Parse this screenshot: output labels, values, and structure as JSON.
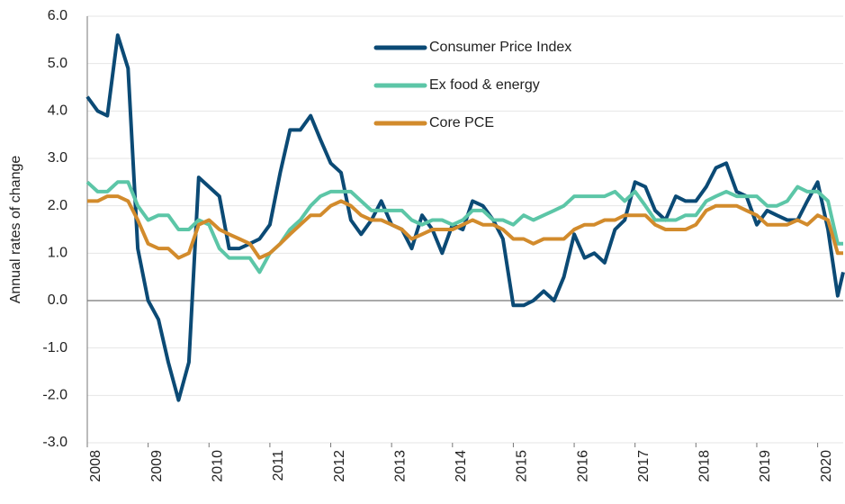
{
  "chart_data": {
    "type": "line",
    "y_label": "Annual rates of change",
    "x": [
      2008.0,
      2008.17,
      2008.33,
      2008.5,
      2008.67,
      2008.83,
      2009.0,
      2009.17,
      2009.33,
      2009.5,
      2009.67,
      2009.83,
      2010.0,
      2010.17,
      2010.33,
      2010.5,
      2010.67,
      2010.83,
      2011.0,
      2011.17,
      2011.33,
      2011.5,
      2011.67,
      2011.83,
      2012.0,
      2012.17,
      2012.33,
      2012.5,
      2012.67,
      2012.83,
      2013.0,
      2013.17,
      2013.33,
      2013.5,
      2013.67,
      2013.83,
      2014.0,
      2014.17,
      2014.33,
      2014.5,
      2014.67,
      2014.83,
      2015.0,
      2015.17,
      2015.33,
      2015.5,
      2015.67,
      2015.83,
      2016.0,
      2016.17,
      2016.33,
      2016.5,
      2016.67,
      2016.83,
      2017.0,
      2017.17,
      2017.33,
      2017.5,
      2017.67,
      2017.83,
      2018.0,
      2018.17,
      2018.33,
      2018.5,
      2018.67,
      2018.83,
      2019.0,
      2019.17,
      2019.33,
      2019.5,
      2019.67,
      2019.83,
      2020.0,
      2020.17,
      2020.33,
      2020.42
    ],
    "series": [
      {
        "name": "Consumer Price Index",
        "color": "#0b4a75",
        "values": [
          4.3,
          4.0,
          3.9,
          5.6,
          4.9,
          1.1,
          0.0,
          -0.4,
          -1.3,
          -2.1,
          -1.3,
          2.6,
          2.4,
          2.2,
          1.1,
          1.1,
          1.2,
          1.3,
          1.6,
          2.7,
          3.6,
          3.6,
          3.9,
          3.4,
          2.9,
          2.7,
          1.7,
          1.4,
          1.7,
          2.1,
          1.6,
          1.5,
          1.1,
          1.8,
          1.5,
          1.0,
          1.6,
          1.5,
          2.1,
          2.0,
          1.7,
          1.3,
          -0.1,
          -0.1,
          0.0,
          0.2,
          0.0,
          0.5,
          1.4,
          0.9,
          1.0,
          0.8,
          1.5,
          1.7,
          2.5,
          2.4,
          1.9,
          1.7,
          2.2,
          2.1,
          2.1,
          2.4,
          2.8,
          2.9,
          2.3,
          2.2,
          1.6,
          1.9,
          1.8,
          1.7,
          1.7,
          2.1,
          2.5,
          1.5,
          0.1,
          0.6
        ]
      },
      {
        "name": "Ex food & energy",
        "color": "#5cc6a7",
        "values": [
          2.5,
          2.3,
          2.3,
          2.5,
          2.5,
          2.0,
          1.7,
          1.8,
          1.8,
          1.5,
          1.5,
          1.7,
          1.6,
          1.1,
          0.9,
          0.9,
          0.9,
          0.6,
          1.0,
          1.2,
          1.5,
          1.7,
          2.0,
          2.2,
          2.3,
          2.3,
          2.3,
          2.1,
          1.9,
          1.9,
          1.9,
          1.9,
          1.7,
          1.6,
          1.7,
          1.7,
          1.6,
          1.7,
          1.9,
          1.9,
          1.7,
          1.7,
          1.6,
          1.8,
          1.7,
          1.8,
          1.9,
          2.0,
          2.2,
          2.2,
          2.2,
          2.2,
          2.3,
          2.1,
          2.3,
          2.0,
          1.7,
          1.7,
          1.7,
          1.8,
          1.8,
          2.1,
          2.2,
          2.3,
          2.2,
          2.2,
          2.2,
          2.0,
          2.0,
          2.1,
          2.4,
          2.3,
          2.3,
          2.1,
          1.2,
          1.2
        ]
      },
      {
        "name": "Core PCE",
        "color": "#d28b2c",
        "values": [
          2.1,
          2.1,
          2.2,
          2.2,
          2.1,
          1.7,
          1.2,
          1.1,
          1.1,
          0.9,
          1.0,
          1.6,
          1.7,
          1.5,
          1.4,
          1.3,
          1.2,
          0.9,
          1.0,
          1.2,
          1.4,
          1.6,
          1.8,
          1.8,
          2.0,
          2.1,
          2.0,
          1.8,
          1.7,
          1.7,
          1.6,
          1.5,
          1.3,
          1.4,
          1.5,
          1.5,
          1.5,
          1.6,
          1.7,
          1.6,
          1.6,
          1.5,
          1.3,
          1.3,
          1.2,
          1.3,
          1.3,
          1.3,
          1.5,
          1.6,
          1.6,
          1.7,
          1.7,
          1.8,
          1.8,
          1.8,
          1.6,
          1.5,
          1.5,
          1.5,
          1.6,
          1.9,
          2.0,
          2.0,
          2.0,
          1.9,
          1.8,
          1.6,
          1.6,
          1.6,
          1.7,
          1.6,
          1.8,
          1.7,
          1.0,
          1.0
        ]
      }
    ],
    "xlim": [
      2008,
      2020.42
    ],
    "xticks": [
      2008,
      2009,
      2010,
      2011,
      2012,
      2013,
      2014,
      2015,
      2016,
      2017,
      2018,
      2019,
      2020
    ],
    "ylim": [
      -3,
      6
    ],
    "yticks": [
      {
        "value": -3,
        "label": "-3.0"
      },
      {
        "value": -2,
        "label": "-2.0"
      },
      {
        "value": -1,
        "label": "-1.0"
      },
      {
        "value": 0,
        "label": "0.0"
      },
      {
        "value": 1,
        "label": "1.0"
      },
      {
        "value": 2,
        "label": "2.0"
      },
      {
        "value": 3,
        "label": "3.0"
      },
      {
        "value": 4,
        "label": "4.0"
      },
      {
        "value": 5,
        "label": "5.0"
      },
      {
        "value": 6,
        "label": "6.0"
      }
    ],
    "grid": true,
    "legend": "top"
  }
}
